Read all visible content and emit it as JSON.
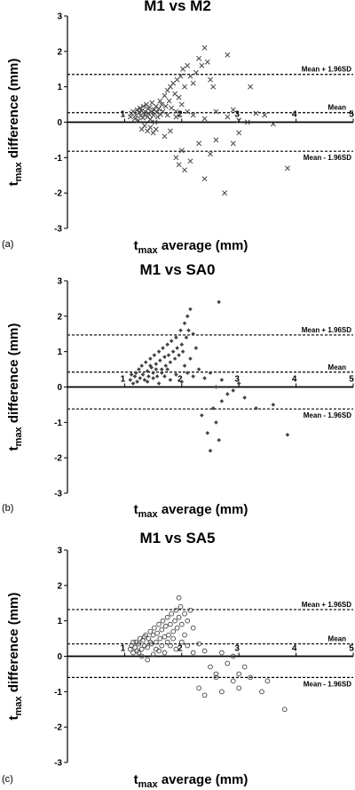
{
  "chart_data": [
    {
      "type": "scatter",
      "panel_label": "(a)",
      "title": "M1 vs M2",
      "xlabel_main": "t",
      "xlabel_sub": "max",
      "xlabel_rest": " average (mm)",
      "ylabel_main": "t",
      "ylabel_sub": "max",
      "ylabel_rest": " difference (mm)",
      "xlim": [
        0,
        5
      ],
      "ylim": [
        -3,
        3
      ],
      "x_ticks": [
        1,
        2,
        3,
        4,
        5
      ],
      "y_ticks": [
        -3,
        -2,
        -1,
        0,
        1,
        2,
        3
      ],
      "marker": "x",
      "reference_lines": [
        {
          "label": "Mean + 1.96SD",
          "y": 1.35
        },
        {
          "label": "Mean",
          "y": 0.27
        },
        {
          "label": "Mean - 1.96SD",
          "y": -0.82
        }
      ],
      "points": [
        [
          1.1,
          0.15
        ],
        [
          1.12,
          0.25
        ],
        [
          1.15,
          0.3
        ],
        [
          1.18,
          0.1
        ],
        [
          1.2,
          0.2
        ],
        [
          1.22,
          0.35
        ],
        [
          1.24,
          0.05
        ],
        [
          1.25,
          0.28
        ],
        [
          1.27,
          0.4
        ],
        [
          1.28,
          0.18
        ],
        [
          1.3,
          0.32
        ],
        [
          1.32,
          0.12
        ],
        [
          1.33,
          0.45
        ],
        [
          1.35,
          0.22
        ],
        [
          1.36,
          0.3
        ],
        [
          1.38,
          0.5
        ],
        [
          1.4,
          0.15
        ],
        [
          1.41,
          0.38
        ],
        [
          1.42,
          0.25
        ],
        [
          1.44,
          0.42
        ],
        [
          1.45,
          0.08
        ],
        [
          1.47,
          0.3
        ],
        [
          1.48,
          0.55
        ],
        [
          1.5,
          0.2
        ],
        [
          1.52,
          0.35
        ],
        [
          1.53,
          0.0
        ],
        [
          1.55,
          0.45
        ],
        [
          1.56,
          0.28
        ],
        [
          1.58,
          0.15
        ],
        [
          1.6,
          0.38
        ],
        [
          1.62,
          0.6
        ],
        [
          1.63,
          0.22
        ],
        [
          1.65,
          0.5
        ],
        [
          1.67,
          0.3
        ],
        [
          1.7,
          0.75
        ],
        [
          1.72,
          0.45
        ],
        [
          1.75,
          0.9
        ],
        [
          1.78,
          0.6
        ],
        [
          1.8,
          1.0
        ],
        [
          1.82,
          0.4
        ],
        [
          1.85,
          1.1
        ],
        [
          1.88,
          0.8
        ],
        [
          1.9,
          0.3
        ],
        [
          1.92,
          1.2
        ],
        [
          1.95,
          0.7
        ],
        [
          1.98,
          1.3
        ],
        [
          2.0,
          0.5
        ],
        [
          2.02,
          1.5
        ],
        [
          2.05,
          1.0
        ],
        [
          2.1,
          1.6
        ],
        [
          2.15,
          1.3
        ],
        [
          2.2,
          1.1
        ],
        [
          2.25,
          1.4
        ],
        [
          2.3,
          1.8
        ],
        [
          2.35,
          1.6
        ],
        [
          2.4,
          2.1
        ],
        [
          2.45,
          1.7
        ],
        [
          2.5,
          1.2
        ],
        [
          2.55,
          1.0
        ],
        [
          2.8,
          1.9
        ],
        [
          3.2,
          1.0
        ],
        [
          1.3,
          -0.2
        ],
        [
          1.35,
          -0.1
        ],
        [
          1.4,
          -0.25
        ],
        [
          1.45,
          -0.15
        ],
        [
          1.5,
          -0.3
        ],
        [
          1.55,
          -0.2
        ],
        [
          1.7,
          -0.4
        ],
        [
          1.8,
          -0.25
        ],
        [
          1.9,
          -1.0
        ],
        [
          1.95,
          -1.2
        ],
        [
          2.0,
          -0.8
        ],
        [
          2.05,
          -1.35
        ],
        [
          2.15,
          -1.1
        ],
        [
          2.3,
          -0.6
        ],
        [
          2.4,
          -1.6
        ],
        [
          2.5,
          -0.9
        ],
        [
          2.6,
          -0.5
        ],
        [
          2.75,
          -2.0
        ],
        [
          2.9,
          -0.6
        ],
        [
          3.0,
          -0.3
        ],
        [
          2.2,
          0.2
        ],
        [
          2.4,
          0.1
        ],
        [
          2.6,
          0.3
        ],
        [
          2.8,
          0.15
        ],
        [
          2.9,
          0.35
        ],
        [
          3.0,
          0.05
        ],
        [
          3.15,
          0.0
        ],
        [
          3.3,
          0.25
        ],
        [
          3.45,
          0.2
        ],
        [
          3.6,
          -0.05
        ],
        [
          3.85,
          -1.3
        ],
        [
          2.1,
          0.3
        ],
        [
          1.9,
          0.15
        ],
        [
          1.75,
          0.2
        ]
      ]
    },
    {
      "type": "scatter",
      "panel_label": "(b)",
      "title": "M1 vs SA0",
      "xlabel_main": "t",
      "xlabel_sub": "max",
      "xlabel_rest": " average (mm)",
      "ylabel_main": "t",
      "ylabel_sub": "max",
      "ylabel_rest": " difference (mm)",
      "xlim": [
        0,
        5
      ],
      "ylim": [
        -3,
        3
      ],
      "x_ticks": [
        1,
        2,
        3,
        4,
        5
      ],
      "y_ticks": [
        -3,
        -2,
        -1,
        0,
        1,
        2,
        3
      ],
      "marker": "diamond",
      "reference_lines": [
        {
          "label": "Mean + 1.96SD",
          "y": 1.47
        },
        {
          "label": "Mean",
          "y": 0.42
        },
        {
          "label": "Mean - 1.96SD",
          "y": -0.62
        }
      ],
      "points": [
        [
          1.1,
          0.2
        ],
        [
          1.12,
          0.35
        ],
        [
          1.15,
          0.1
        ],
        [
          1.18,
          0.3
        ],
        [
          1.2,
          0.4
        ],
        [
          1.22,
          0.15
        ],
        [
          1.25,
          0.5
        ],
        [
          1.27,
          0.25
        ],
        [
          1.3,
          0.6
        ],
        [
          1.32,
          0.35
        ],
        [
          1.35,
          0.2
        ],
        [
          1.37,
          0.7
        ],
        [
          1.4,
          0.45
        ],
        [
          1.42,
          0.3
        ],
        [
          1.45,
          0.8
        ],
        [
          1.47,
          0.55
        ],
        [
          1.5,
          0.4
        ],
        [
          1.52,
          0.9
        ],
        [
          1.55,
          0.65
        ],
        [
          1.57,
          0.3
        ],
        [
          1.6,
          1.0
        ],
        [
          1.62,
          0.75
        ],
        [
          1.65,
          0.5
        ],
        [
          1.67,
          1.1
        ],
        [
          1.7,
          0.85
        ],
        [
          1.72,
          0.6
        ],
        [
          1.75,
          1.2
        ],
        [
          1.77,
          0.9
        ],
        [
          1.8,
          0.7
        ],
        [
          1.82,
          1.3
        ],
        [
          1.85,
          1.0
        ],
        [
          1.88,
          0.8
        ],
        [
          1.9,
          1.4
        ],
        [
          1.92,
          1.1
        ],
        [
          1.95,
          0.9
        ],
        [
          1.98,
          1.6
        ],
        [
          2.0,
          1.2
        ],
        [
          2.02,
          1.0
        ],
        [
          2.05,
          1.8
        ],
        [
          2.08,
          1.4
        ],
        [
          2.1,
          2.0
        ],
        [
          2.12,
          1.6
        ],
        [
          2.15,
          2.2
        ],
        [
          2.2,
          1.5
        ],
        [
          2.25,
          1.1
        ],
        [
          2.65,
          2.4
        ],
        [
          1.4,
          0.15
        ],
        [
          1.5,
          0.25
        ],
        [
          1.6,
          0.1
        ],
        [
          1.7,
          0.3
        ],
        [
          1.8,
          0.2
        ],
        [
          1.9,
          0.35
        ],
        [
          2.0,
          0.15
        ],
        [
          2.1,
          0.4
        ],
        [
          2.2,
          0.3
        ],
        [
          2.3,
          0.5
        ],
        [
          2.4,
          0.25
        ],
        [
          2.5,
          0.4
        ],
        [
          2.6,
          0.0
        ],
        [
          2.7,
          0.2
        ],
        [
          2.8,
          -0.2
        ],
        [
          2.9,
          -0.1
        ],
        [
          3.0,
          0.1
        ],
        [
          3.1,
          -0.3
        ],
        [
          2.35,
          -0.8
        ],
        [
          2.45,
          -1.3
        ],
        [
          2.5,
          -1.8
        ],
        [
          2.55,
          -0.6
        ],
        [
          2.6,
          -1.0
        ],
        [
          2.65,
          -1.5
        ],
        [
          2.7,
          -0.4
        ],
        [
          3.3,
          -0.6
        ],
        [
          3.6,
          -0.5
        ],
        [
          3.85,
          -1.35
        ],
        [
          1.55,
          0.5
        ],
        [
          1.45,
          0.6
        ],
        [
          1.65,
          0.4
        ],
        [
          1.75,
          0.5
        ],
        [
          2.05,
          0.6
        ],
        [
          2.15,
          0.8
        ]
      ]
    },
    {
      "type": "scatter",
      "panel_label": "(c)",
      "title": "M1 vs SA5",
      "xlabel_main": "t",
      "xlabel_sub": "max",
      "xlabel_rest": " average (mm)",
      "ylabel_main": "t",
      "ylabel_sub": "max",
      "ylabel_rest": " difference (mm)",
      "xlim": [
        0,
        5
      ],
      "ylim": [
        -3,
        3
      ],
      "x_ticks": [
        1,
        2,
        3,
        4,
        5
      ],
      "y_ticks": [
        -3,
        -2,
        -1,
        0,
        1,
        2,
        3
      ],
      "marker": "circle",
      "reference_lines": [
        {
          "label": "Mean + 1.96SD",
          "y": 1.32
        },
        {
          "label": "Mean",
          "y": 0.35
        },
        {
          "label": "Mean - 1.96SD",
          "y": -0.6
        }
      ],
      "points": [
        [
          1.1,
          0.2
        ],
        [
          1.12,
          0.3
        ],
        [
          1.15,
          0.1
        ],
        [
          1.18,
          0.25
        ],
        [
          1.2,
          0.4
        ],
        [
          1.22,
          0.15
        ],
        [
          1.25,
          0.35
        ],
        [
          1.27,
          0.5
        ],
        [
          1.3,
          0.2
        ],
        [
          1.32,
          0.45
        ],
        [
          1.35,
          0.3
        ],
        [
          1.37,
          0.6
        ],
        [
          1.4,
          0.25
        ],
        [
          1.42,
          0.5
        ],
        [
          1.45,
          0.7
        ],
        [
          1.47,
          0.35
        ],
        [
          1.5,
          0.6
        ],
        [
          1.52,
          0.8
        ],
        [
          1.55,
          0.4
        ],
        [
          1.57,
          0.65
        ],
        [
          1.6,
          0.9
        ],
        [
          1.62,
          0.5
        ],
        [
          1.65,
          0.75
        ],
        [
          1.67,
          1.0
        ],
        [
          1.7,
          0.55
        ],
        [
          1.72,
          0.85
        ],
        [
          1.75,
          1.1
        ],
        [
          1.77,
          0.6
        ],
        [
          1.8,
          0.9
        ],
        [
          1.82,
          1.2
        ],
        [
          1.85,
          0.7
        ],
        [
          1.88,
          1.0
        ],
        [
          1.9,
          1.3
        ],
        [
          1.92,
          0.8
        ],
        [
          1.95,
          1.1
        ],
        [
          1.98,
          1.4
        ],
        [
          2.0,
          0.9
        ],
        [
          2.05,
          1.2
        ],
        [
          2.1,
          1.0
        ],
        [
          2.15,
          1.3
        ],
        [
          2.2,
          0.8
        ],
        [
          1.3,
          0.0
        ],
        [
          1.4,
          -0.1
        ],
        [
          1.5,
          0.05
        ],
        [
          1.6,
          0.15
        ],
        [
          1.7,
          0.1
        ],
        [
          1.8,
          0.3
        ],
        [
          1.9,
          0.2
        ],
        [
          2.0,
          0.4
        ],
        [
          2.1,
          0.3
        ],
        [
          2.2,
          0.1
        ],
        [
          2.3,
          0.35
        ],
        [
          2.4,
          0.15
        ],
        [
          2.5,
          -0.3
        ],
        [
          2.6,
          -0.5
        ],
        [
          2.7,
          0.1
        ],
        [
          2.8,
          -0.2
        ],
        [
          2.9,
          0.0
        ],
        [
          3.0,
          -0.5
        ],
        [
          3.1,
          -0.3
        ],
        [
          2.3,
          -0.9
        ],
        [
          2.4,
          -1.1
        ],
        [
          2.6,
          -0.6
        ],
        [
          2.7,
          -1.0
        ],
        [
          2.9,
          -0.7
        ],
        [
          3.0,
          -0.9
        ],
        [
          3.2,
          -0.6
        ],
        [
          3.4,
          -1.0
        ],
        [
          3.5,
          -0.7
        ],
        [
          3.8,
          -1.5
        ],
        [
          1.95,
          1.65
        ],
        [
          1.55,
          0.2
        ],
        [
          1.65,
          0.3
        ],
        [
          1.75,
          0.4
        ],
        [
          1.85,
          0.5
        ],
        [
          2.05,
          0.6
        ],
        [
          1.45,
          0.4
        ],
        [
          1.35,
          0.55
        ],
        [
          1.25,
          0.1
        ],
        [
          1.15,
          0.4
        ]
      ]
    }
  ]
}
